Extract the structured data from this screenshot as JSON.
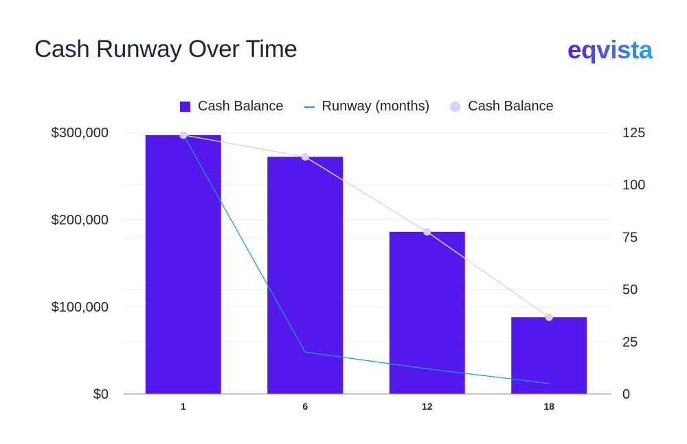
{
  "title": "Cash Runway Over Time",
  "brand": "eqvista",
  "legend": [
    {
      "label": "Cash Balance",
      "kind": "bar",
      "color": "#5318eb"
    },
    {
      "label": "Runway (months)",
      "kind": "line",
      "color": "#16a0ee"
    },
    {
      "label": "Cash Balance",
      "kind": "dot",
      "color": "#d9d1f7"
    }
  ],
  "chart_data": {
    "type": "bar",
    "title": "Cash Runway Over Time",
    "categories": [
      "1",
      "6",
      "12",
      "18"
    ],
    "series": [
      {
        "name": "Cash Balance",
        "type": "bar",
        "axis": "left",
        "values": [
          297000,
          272000,
          186000,
          88000
        ],
        "color": "#5318eb"
      },
      {
        "name": "Runway (months)",
        "type": "line",
        "axis": "right",
        "values": [
          124,
          20,
          12,
          5
        ],
        "color": "#16a0ee"
      },
      {
        "name": "Cash Balance",
        "type": "line-markers",
        "axis": "left",
        "values": [
          297000,
          272000,
          186000,
          88000
        ],
        "color": "#d9d1f7"
      }
    ],
    "yleft": {
      "min": 0,
      "max": 300000,
      "ticks": [
        0,
        100000,
        200000,
        300000
      ],
      "tick_labels": [
        "$0",
        "$100,000",
        "$200,000",
        "$300,000"
      ]
    },
    "yright": {
      "min": 0,
      "max": 125,
      "ticks": [
        0,
        25,
        50,
        75,
        100,
        125
      ],
      "tick_labels": [
        "0",
        "25",
        "50",
        "75",
        "100",
        "125"
      ]
    },
    "grid": true,
    "legend_position": "top"
  }
}
